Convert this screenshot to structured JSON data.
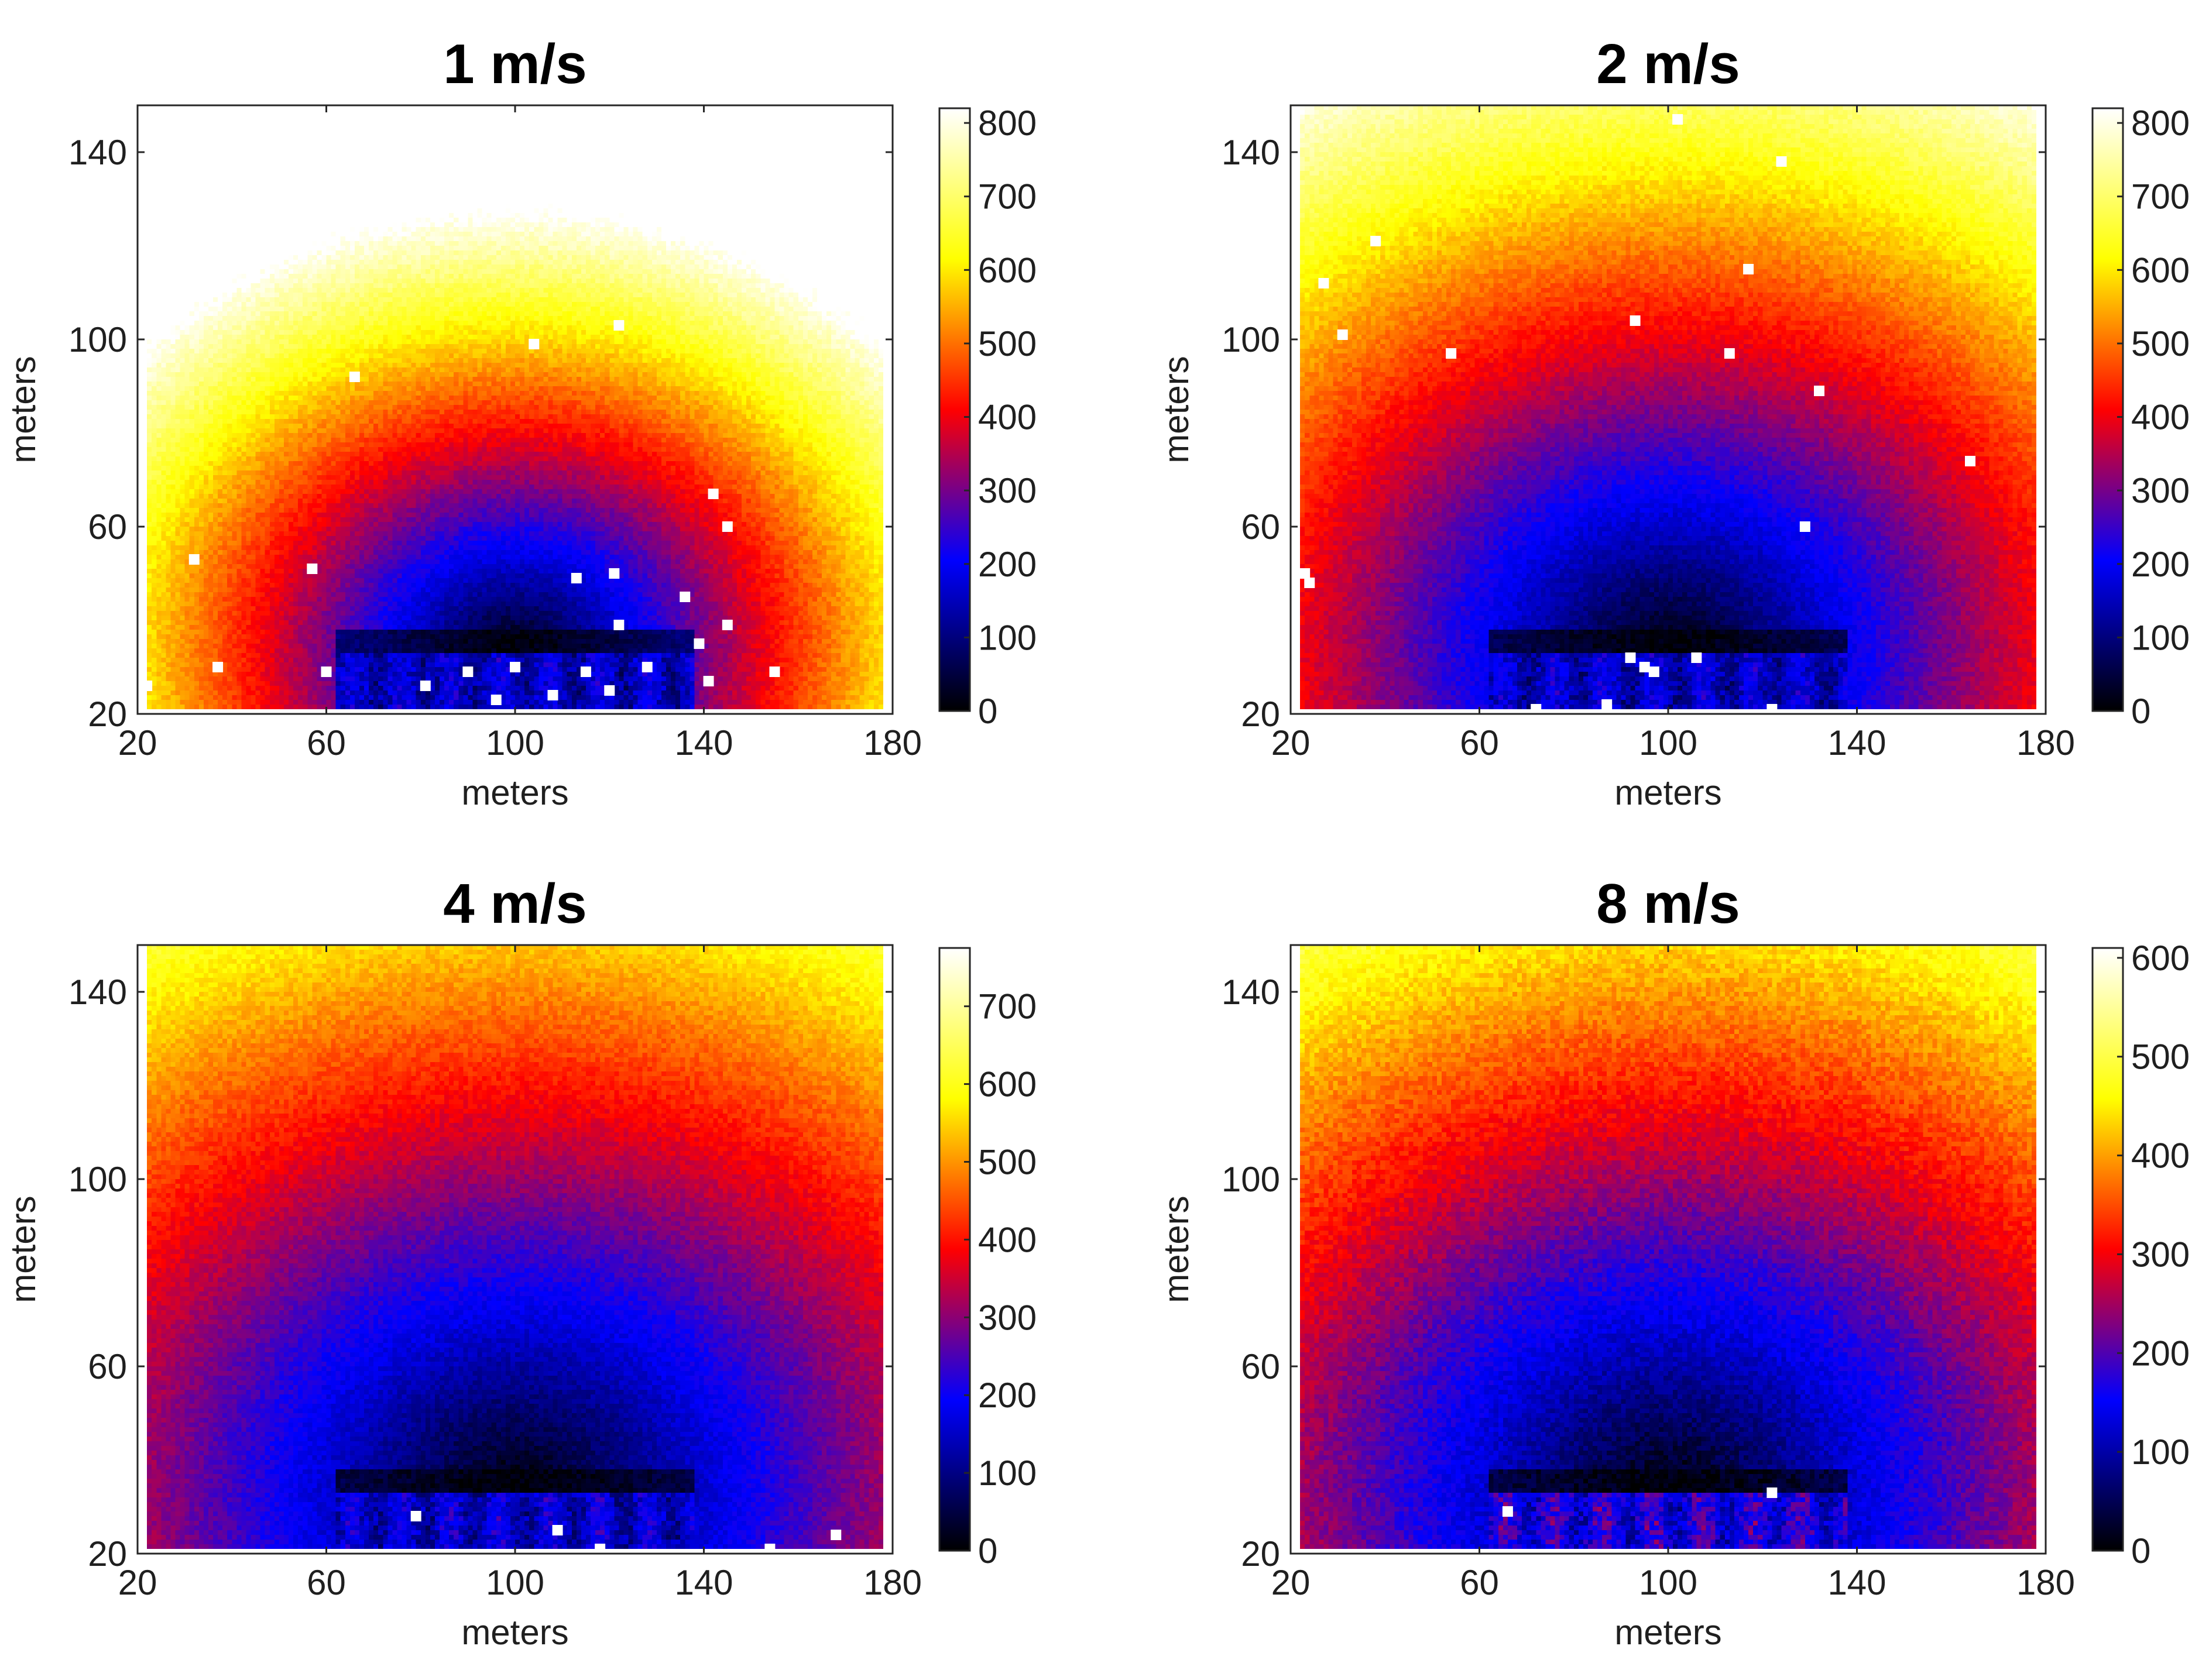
{
  "figure": {
    "colormap": {
      "name": "black-blue-red-yellow-white",
      "stops": [
        "#000000",
        "#0000ff",
        "#ff0000",
        "#ffff00",
        "#ffffff"
      ]
    }
  },
  "chart_data": [
    {
      "type": "heatmap",
      "title": "1 m/s",
      "xlabel": "meters",
      "ylabel": "meters",
      "xlim": [
        20,
        180
      ],
      "ylim": [
        20,
        150
      ],
      "xticks": [
        20,
        60,
        100,
        140,
        180
      ],
      "yticks": [
        20,
        60,
        100,
        140
      ],
      "clim": [
        0,
        820
      ],
      "cticks": [
        0,
        100,
        200,
        300,
        400,
        500,
        600,
        700,
        800
      ],
      "source": [
        100,
        33
      ],
      "max_range": 94,
      "field_value_scale": 8.7,
      "voids": [
        [
          37,
          30
        ],
        [
          104,
          99
        ],
        [
          122,
          103
        ],
        [
          66,
          92
        ],
        [
          32,
          53
        ],
        [
          57,
          51
        ],
        [
          113,
          49
        ],
        [
          121,
          50
        ],
        [
          136,
          45
        ],
        [
          122,
          39
        ],
        [
          145,
          39
        ],
        [
          139,
          35
        ],
        [
          141,
          27
        ],
        [
          142,
          67
        ],
        [
          145,
          60
        ],
        [
          60,
          29
        ],
        [
          90,
          29
        ],
        [
          100,
          30
        ],
        [
          115,
          29
        ],
        [
          128,
          30
        ],
        [
          155,
          29
        ],
        [
          81,
          26
        ],
        [
          96,
          23
        ],
        [
          108,
          24
        ],
        [
          120,
          25
        ],
        [
          22,
          26
        ]
      ]
    },
    {
      "type": "heatmap",
      "title": "2 m/s",
      "xlabel": "meters",
      "ylabel": "meters",
      "xlim": [
        20,
        180
      ],
      "ylim": [
        20,
        150
      ],
      "xticks": [
        20,
        60,
        100,
        140,
        180
      ],
      "yticks": [
        20,
        60,
        100,
        140
      ],
      "clim": [
        0,
        820
      ],
      "cticks": [
        0,
        100,
        200,
        300,
        400,
        500,
        600,
        700,
        800
      ],
      "source": [
        100,
        33
      ],
      "max_range": 135,
      "field_value_scale": 5.9,
      "voids": [
        [
          102,
          147
        ],
        [
          124,
          138
        ],
        [
          38,
          121
        ],
        [
          27,
          112
        ],
        [
          31,
          101
        ],
        [
          117,
          115
        ],
        [
          54,
          97
        ],
        [
          93,
          104
        ],
        [
          113,
          97
        ],
        [
          132,
          89
        ],
        [
          164,
          74
        ],
        [
          129,
          60
        ],
        [
          23,
          50
        ],
        [
          24,
          48
        ],
        [
          92,
          32
        ],
        [
          95,
          30
        ],
        [
          97,
          29
        ],
        [
          106,
          32
        ],
        [
          87,
          22
        ],
        [
          72,
          21
        ],
        [
          122,
          21
        ]
      ]
    },
    {
      "type": "heatmap",
      "title": "4 m/s",
      "xlabel": "meters",
      "ylabel": "meters",
      "xlim": [
        20,
        180
      ],
      "ylim": [
        20,
        150
      ],
      "xticks": [
        20,
        60,
        100,
        140,
        180
      ],
      "yticks": [
        20,
        60,
        100,
        140
      ],
      "clim": [
        0,
        775
      ],
      "cticks": [
        0,
        100,
        200,
        300,
        400,
        500,
        600,
        700
      ],
      "source": [
        100,
        33
      ],
      "max_range": 999,
      "field_value_scale": 4.6,
      "voids": [
        [
          79,
          28
        ],
        [
          109,
          25
        ],
        [
          118,
          21
        ],
        [
          154,
          21
        ],
        [
          168,
          24
        ]
      ]
    },
    {
      "type": "heatmap",
      "title": "8 m/s",
      "xlabel": "meters",
      "ylabel": "meters",
      "xlim": [
        20,
        180
      ],
      "ylim": [
        20,
        150
      ],
      "xticks": [
        20,
        60,
        100,
        140,
        180
      ],
      "yticks": [
        20,
        60,
        100,
        140
      ],
      "clim": [
        0,
        610
      ],
      "cticks": [
        0,
        100,
        200,
        300,
        400,
        500,
        600
      ],
      "source": [
        100,
        33
      ],
      "max_range": 999,
      "field_value_scale": 3.7,
      "voids": [
        [
          66,
          29
        ],
        [
          122,
          33
        ]
      ]
    }
  ]
}
